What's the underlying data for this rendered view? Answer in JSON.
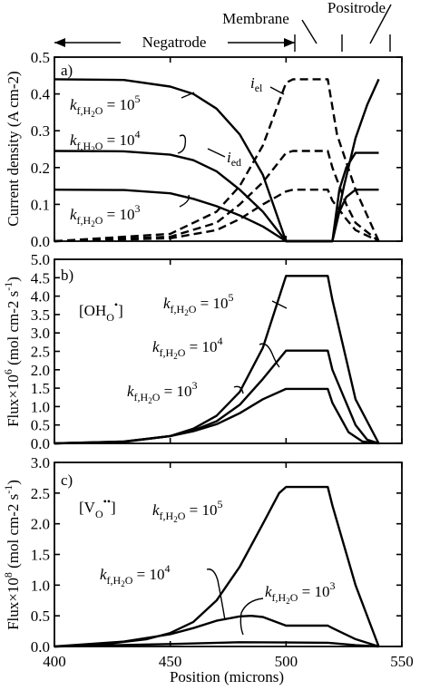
{
  "chart_data": [
    {
      "type": "line",
      "panel_letter": "a)",
      "ylabel": "Current density (A cm-2)",
      "xlim": [
        400,
        550
      ],
      "ylim": [
        0,
        0.5
      ],
      "yticks": [
        "0.0",
        "0.1",
        "0.2",
        "0.3",
        "0.4",
        "0.5"
      ],
      "region_labels": [
        "Negatrode",
        "Membrane",
        "Positrode"
      ],
      "curve_labels": [
        "iel",
        "ied"
      ],
      "series": [
        {
          "name": "ied",
          "style": "solid",
          "k": "10^5",
          "x": [
            400,
            430,
            450,
            460,
            470,
            480,
            490,
            500,
            518,
            520,
            525,
            530,
            535,
            540
          ],
          "y": [
            0.44,
            0.438,
            0.42,
            0.4,
            0.36,
            0.29,
            0.18,
            0.0,
            0.0,
            0.0,
            0.15,
            0.28,
            0.37,
            0.44
          ]
        },
        {
          "name": "ied",
          "style": "solid",
          "k": "10^4",
          "x": [
            400,
            430,
            450,
            460,
            470,
            480,
            490,
            500,
            518,
            520,
            523,
            526,
            530,
            540
          ],
          "y": [
            0.245,
            0.244,
            0.235,
            0.22,
            0.19,
            0.14,
            0.08,
            0.0,
            0.0,
            0.0,
            0.14,
            0.2,
            0.24,
            0.24
          ]
        },
        {
          "name": "ied",
          "style": "solid",
          "k": "10^3",
          "x": [
            400,
            430,
            450,
            460,
            470,
            480,
            490,
            500,
            518,
            520,
            523,
            526,
            530,
            540
          ],
          "y": [
            0.14,
            0.139,
            0.13,
            0.115,
            0.095,
            0.07,
            0.04,
            0.0,
            0.0,
            0.0,
            0.08,
            0.12,
            0.14,
            0.14
          ]
        },
        {
          "name": "iel",
          "style": "dashed",
          "k": "10^5",
          "x": [
            400,
            450,
            470,
            480,
            490,
            500,
            503,
            518,
            522,
            530,
            540
          ],
          "y": [
            0.0,
            0.02,
            0.08,
            0.15,
            0.26,
            0.43,
            0.44,
            0.44,
            0.29,
            0.14,
            0.0
          ]
        },
        {
          "name": "iel",
          "style": "dashed",
          "k": "10^4",
          "x": [
            400,
            450,
            470,
            480,
            490,
            500,
            503,
            518,
            520,
            526,
            530,
            540
          ],
          "y": [
            0.0,
            0.012,
            0.05,
            0.1,
            0.16,
            0.24,
            0.245,
            0.245,
            0.2,
            0.1,
            0.05,
            0.0
          ]
        },
        {
          "name": "iel",
          "style": "dashed",
          "k": "10^3",
          "x": [
            400,
            450,
            470,
            480,
            490,
            500,
            503,
            518,
            520,
            526,
            530,
            540
          ],
          "y": [
            0.0,
            0.008,
            0.03,
            0.06,
            0.1,
            0.135,
            0.14,
            0.14,
            0.11,
            0.06,
            0.03,
            0.0
          ]
        }
      ],
      "annotations": [
        {
          "text": "kf,H2O = 10^5",
          "sub": "f,H2O",
          "exp": "5"
        },
        {
          "text": "kf,H2O = 10^4",
          "sub": "f,H2O",
          "exp": "4"
        },
        {
          "text": "kf,H2O = 10^3",
          "sub": "f,H2O",
          "exp": "3"
        }
      ]
    },
    {
      "type": "line",
      "panel_letter": "b)",
      "ylabel": "Flux×10^6 (mol cm-2 s-1)",
      "species": "[OH•O]",
      "xlim": [
        400,
        550
      ],
      "ylim": [
        0,
        5.0
      ],
      "yticks": [
        "0.0",
        "0.5",
        "1.0",
        "1.5",
        "2.0",
        "2.5",
        "3.0",
        "3.5",
        "4.0",
        "4.5",
        "5.0"
      ],
      "series": [
        {
          "k": "10^5",
          "x": [
            400,
            430,
            450,
            460,
            470,
            480,
            490,
            500,
            518,
            520,
            530,
            540
          ],
          "y": [
            0.0,
            0.05,
            0.2,
            0.4,
            0.75,
            1.4,
            2.6,
            4.55,
            4.55,
            3.9,
            1.2,
            0.0
          ]
        },
        {
          "k": "10^4",
          "x": [
            400,
            430,
            450,
            460,
            470,
            480,
            490,
            500,
            518,
            520,
            530,
            535,
            540
          ],
          "y": [
            0.0,
            0.05,
            0.2,
            0.35,
            0.6,
            1.05,
            1.75,
            2.52,
            2.52,
            2.0,
            0.5,
            0.1,
            0.0
          ]
        },
        {
          "k": "10^3",
          "x": [
            400,
            430,
            450,
            460,
            470,
            480,
            490,
            500,
            518,
            520,
            527,
            533,
            540
          ],
          "y": [
            0.0,
            0.04,
            0.2,
            0.33,
            0.52,
            0.82,
            1.2,
            1.48,
            1.48,
            1.1,
            0.3,
            0.05,
            0.0
          ]
        }
      ],
      "annotations": [
        {
          "text": "kf,H2O = 10^5",
          "sub": "f,H2O",
          "exp": "5"
        },
        {
          "text": "kf,H2O = 10^4",
          "sub": "f,H2O",
          "exp": "4"
        },
        {
          "text": "kf,H2O = 10^3",
          "sub": "f,H2O",
          "exp": "3"
        }
      ]
    },
    {
      "type": "line",
      "panel_letter": "c)",
      "ylabel": "Flux×10^8 (mol cm-2 s-1)",
      "species": "[V••O]",
      "xlim": [
        400,
        550
      ],
      "ylim": [
        0,
        3.0
      ],
      "yticks": [
        "0.0",
        "0.5",
        "1.0",
        "1.5",
        "2.0",
        "2.5",
        "3.0"
      ],
      "xticks": [
        "400",
        "450",
        "500",
        "550"
      ],
      "xlabel": "Position (microns)",
      "series": [
        {
          "k": "10^5",
          "x": [
            400,
            420,
            440,
            450,
            460,
            470,
            480,
            490,
            497,
            500,
            518,
            520,
            530,
            540
          ],
          "y": [
            0.0,
            0.03,
            0.12,
            0.22,
            0.4,
            0.75,
            1.3,
            2.0,
            2.5,
            2.6,
            2.6,
            2.3,
            1.0,
            0.0
          ]
        },
        {
          "k": "10^4",
          "x": [
            400,
            430,
            450,
            460,
            470,
            480,
            485,
            490,
            500,
            518,
            520,
            530,
            540
          ],
          "y": [
            0.0,
            0.08,
            0.2,
            0.3,
            0.42,
            0.49,
            0.5,
            0.48,
            0.34,
            0.34,
            0.3,
            0.12,
            0.0
          ]
        },
        {
          "k": "10^3",
          "x": [
            400,
            450,
            480,
            500,
            518,
            520,
            530,
            540
          ],
          "y": [
            0.0,
            0.04,
            0.07,
            0.065,
            0.06,
            0.055,
            0.02,
            0.0
          ]
        }
      ],
      "annotations": [
        {
          "text": "kf,H2O = 10^5",
          "sub": "f,H2O",
          "exp": "5"
        },
        {
          "text": "kf,H2O = 10^4",
          "sub": "f,H2O",
          "exp": "4"
        },
        {
          "text": "kf,H2O = 10^3",
          "sub": "f,H2O",
          "exp": "3"
        }
      ]
    }
  ]
}
